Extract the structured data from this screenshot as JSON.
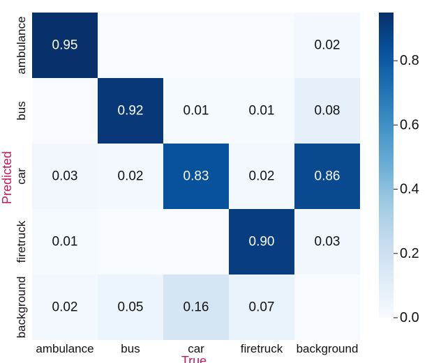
{
  "chart_data": {
    "type": "heatmap",
    "xlabel": "True",
    "ylabel": "Predicted",
    "x_categories": [
      "ambulance",
      "bus",
      "car",
      "firetruck",
      "background"
    ],
    "y_categories": [
      "ambulance",
      "bus",
      "car",
      "firetruck",
      "background"
    ],
    "values": [
      [
        0.95,
        null,
        null,
        null,
        0.02
      ],
      [
        null,
        0.92,
        0.01,
        0.01,
        0.08
      ],
      [
        0.03,
        0.02,
        0.83,
        0.02,
        0.86
      ],
      [
        0.01,
        null,
        null,
        0.9,
        0.03
      ],
      [
        0.02,
        0.05,
        0.16,
        0.07,
        null
      ]
    ],
    "empty_cell_value": 0.0,
    "value_format": "0.00",
    "colormap": "Blues",
    "colorbar": {
      "range": [
        0,
        0.95
      ],
      "ticks": [
        0.0,
        0.2,
        0.4,
        0.6,
        0.8
      ],
      "tick_labels": [
        "0.0",
        "0.2",
        "0.4",
        "0.6",
        "0.8"
      ]
    },
    "axis_title_color": "#c2185b",
    "colors": {
      "low": "#f7fbff",
      "high": "#08306b"
    }
  }
}
